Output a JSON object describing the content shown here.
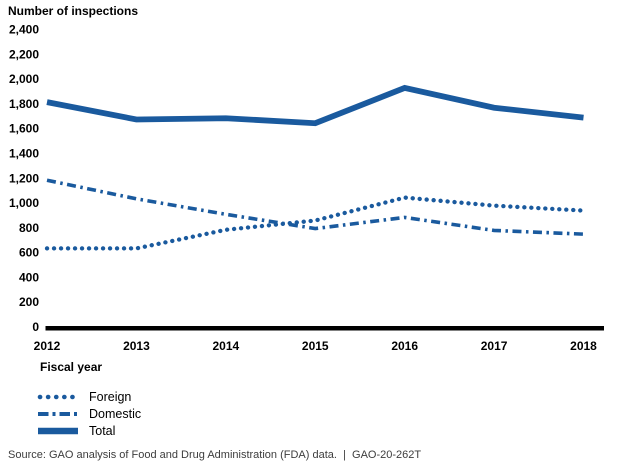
{
  "chart_data": {
    "type": "line",
    "title": "Number of inspections",
    "xlabel": "Fiscal year",
    "ylabel": "Number of inspections",
    "x": [
      2012,
      2013,
      2014,
      2015,
      2016,
      2017,
      2018
    ],
    "x_tick_labels": [
      "2012",
      "2013",
      "2014",
      "2015",
      "2016",
      "2017",
      "2018"
    ],
    "ylim": [
      0,
      2400
    ],
    "y_tick_step": 200,
    "y_tick_labels": [
      "0",
      "200",
      "400",
      "600",
      "800",
      "1,000",
      "1,200",
      "1,400",
      "1,600",
      "1,800",
      "2,000",
      "2,200",
      "2,400"
    ],
    "grid": false,
    "legend_position": "below-left",
    "series": [
      {
        "name": "Foreign",
        "style": "dotted",
        "values": [
          630,
          630,
          780,
          855,
          1040,
          975,
          935
        ]
      },
      {
        "name": "Domestic",
        "style": "dashdot",
        "values": [
          1180,
          1030,
          905,
          790,
          880,
          775,
          745
        ]
      },
      {
        "name": "Total",
        "style": "solid",
        "values": [
          1810,
          1670,
          1680,
          1640,
          1925,
          1765,
          1685
        ]
      }
    ],
    "colors": {
      "series_blue": "#1a5a9e",
      "axis_black": "#000000"
    }
  },
  "source_note": "Source: GAO analysis of Food and Drug Administration (FDA) data.  |  GAO-20-262T"
}
